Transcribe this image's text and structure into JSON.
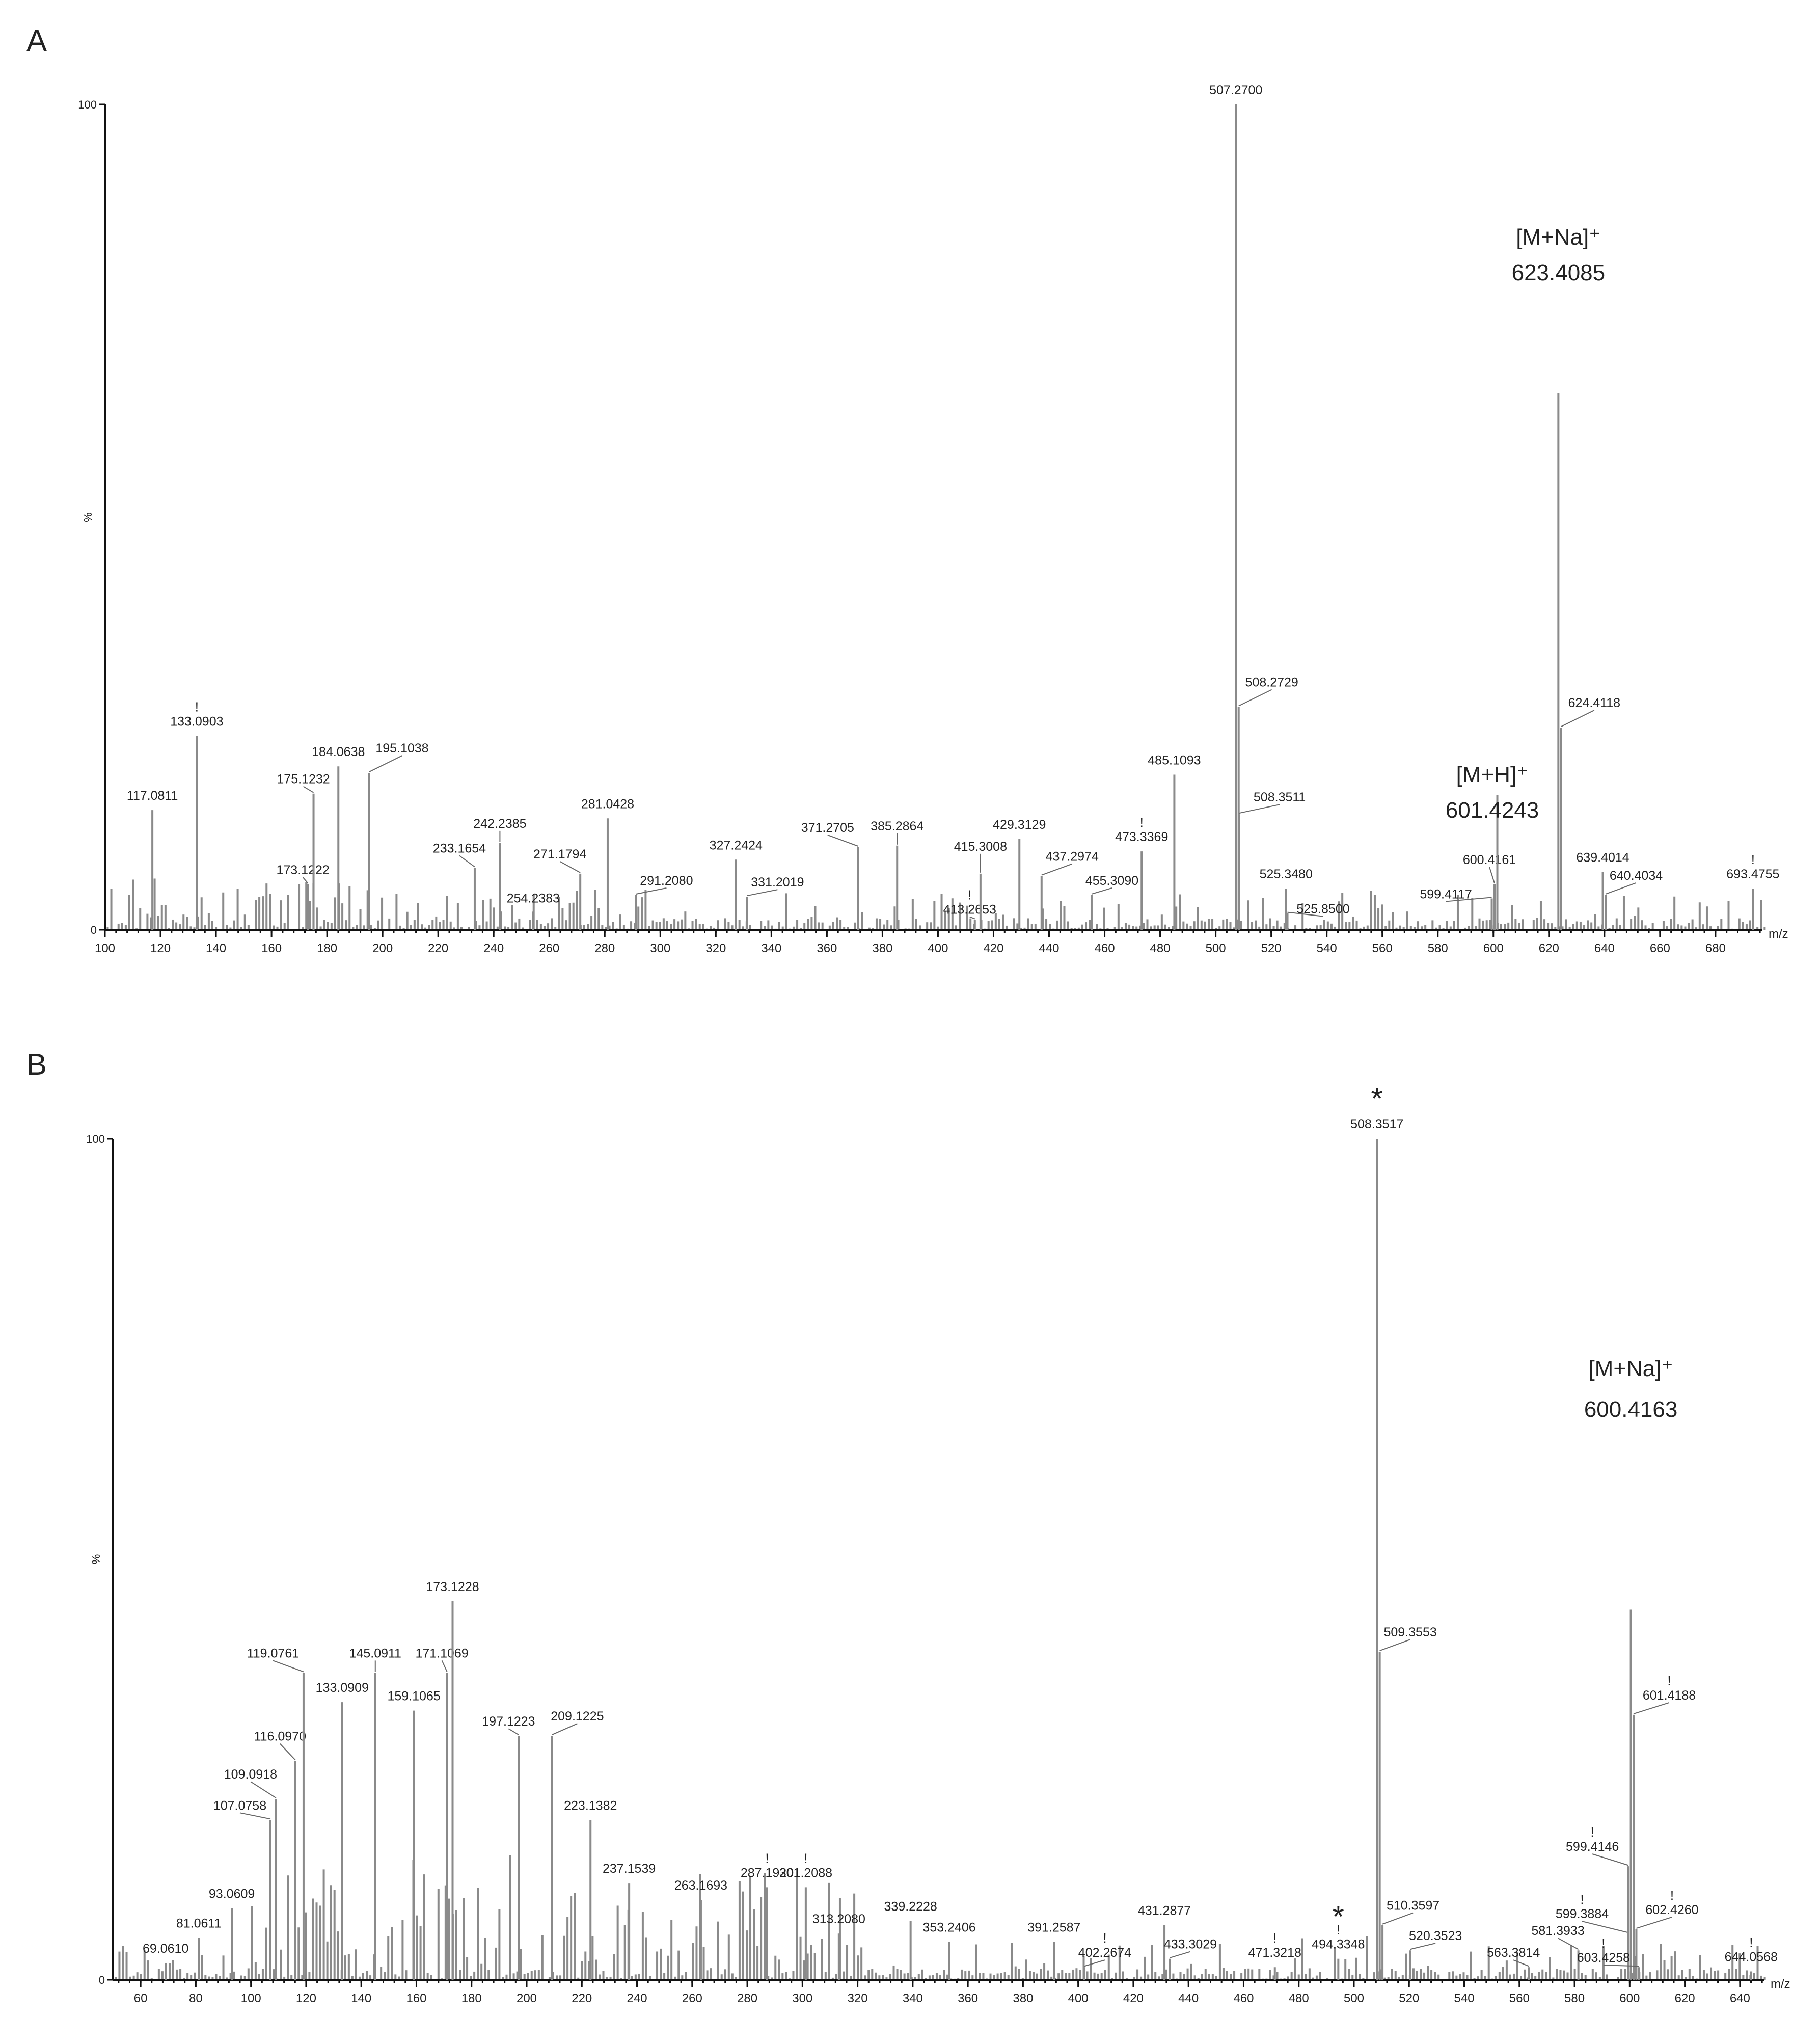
{
  "chart_data": [
    {
      "panel": "A",
      "type": "bar",
      "xlabel": "m/z",
      "ylabel": "%",
      "xlim": [
        100,
        698
      ],
      "ylim": [
        0,
        100
      ],
      "x_ticks": [
        100,
        120,
        140,
        160,
        180,
        200,
        220,
        240,
        260,
        280,
        300,
        320,
        340,
        360,
        380,
        400,
        420,
        440,
        460,
        480,
        500,
        520,
        540,
        560,
        580,
        600,
        620,
        640,
        660,
        680
      ],
      "y_ticks": [
        0,
        100
      ],
      "peaks": [
        {
          "mz": 117.0811,
          "intensity": 14.5,
          "label": "117.0811"
        },
        {
          "mz": 133.0903,
          "intensity": 23.5,
          "label": "133.0903",
          "flag": "!"
        },
        {
          "mz": 173.1222,
          "intensity": 5.5,
          "label": "173.1222"
        },
        {
          "mz": 175.1232,
          "intensity": 16.5,
          "label": "175.1232"
        },
        {
          "mz": 184.0638,
          "intensity": 19.8,
          "label": "184.0638"
        },
        {
          "mz": 195.1038,
          "intensity": 19.0,
          "label": "195.1038"
        },
        {
          "mz": 233.1654,
          "intensity": 7.5,
          "label": "233.1654"
        },
        {
          "mz": 242.2385,
          "intensity": 10.5,
          "label": "242.2385"
        },
        {
          "mz": 254.2383,
          "intensity": 2.2,
          "label": "254.2383"
        },
        {
          "mz": 271.1794,
          "intensity": 6.8,
          "label": "271.1794"
        },
        {
          "mz": 281.0428,
          "intensity": 13.5,
          "label": "281.0428"
        },
        {
          "mz": 291.208,
          "intensity": 4.2,
          "label": "291.2080"
        },
        {
          "mz": 327.2424,
          "intensity": 8.5,
          "label": "327.2424"
        },
        {
          "mz": 331.2019,
          "intensity": 4.0,
          "label": "331.2019"
        },
        {
          "mz": 371.2705,
          "intensity": 10.0,
          "label": "371.2705"
        },
        {
          "mz": 385.2864,
          "intensity": 10.2,
          "label": "385.2864"
        },
        {
          "mz": 413.2653,
          "intensity": 1.2,
          "label": "413.2653",
          "flag": "!"
        },
        {
          "mz": 415.3008,
          "intensity": 6.8,
          "label": "415.3008"
        },
        {
          "mz": 429.3129,
          "intensity": 11.0,
          "label": "429.3129"
        },
        {
          "mz": 437.2974,
          "intensity": 6.5,
          "label": "437.2974"
        },
        {
          "mz": 455.309,
          "intensity": 4.2,
          "label": "455.3090"
        },
        {
          "mz": 473.3369,
          "intensity": 9.5,
          "label": "473.3369",
          "flag": "!"
        },
        {
          "mz": 485.1093,
          "intensity": 18.8,
          "label": "485.1093"
        },
        {
          "mz": 507.27,
          "intensity": 100,
          "label": "507.2700"
        },
        {
          "mz": 508.2729,
          "intensity": 27.0,
          "label": "508.2729"
        },
        {
          "mz": 508.3511,
          "intensity": 14.0,
          "label": "508.3511"
        },
        {
          "mz": 525.348,
          "intensity": 5.0,
          "label": "525.3480"
        },
        {
          "mz": 525.85,
          "intensity": 2.0,
          "label": "525.8500"
        },
        {
          "mz": 599.4117,
          "intensity": 3.8,
          "label": "599.4117"
        },
        {
          "mz": 600.4161,
          "intensity": 5.5,
          "label": "600.4161"
        },
        {
          "mz": 601.4243,
          "intensity": 16.3,
          "label": "601.4243"
        },
        {
          "mz": 623.4085,
          "intensity": 65.0,
          "label": "623.4085"
        },
        {
          "mz": 624.4118,
          "intensity": 24.5,
          "label": "624.4118"
        },
        {
          "mz": 639.4014,
          "intensity": 7.0,
          "label": "639.4014"
        },
        {
          "mz": 640.4034,
          "intensity": 4.2,
          "label": "640.4034"
        },
        {
          "mz": 693.4755,
          "intensity": 5.0,
          "label": "693.4755",
          "flag": "!"
        }
      ],
      "annotations": [
        {
          "text": "[M+H]⁺",
          "mz": 601.4243,
          "value": "601.4243"
        },
        {
          "text": "[M+Na]⁺",
          "mz": 623.4085,
          "value": "623.4085"
        }
      ]
    },
    {
      "panel": "B",
      "type": "bar",
      "xlabel": "m/z",
      "ylabel": "%",
      "xlim": [
        50,
        650
      ],
      "ylim": [
        0,
        100
      ],
      "x_ticks": [
        60,
        80,
        100,
        120,
        140,
        160,
        180,
        200,
        220,
        240,
        260,
        280,
        300,
        320,
        340,
        360,
        380,
        400,
        420,
        440,
        460,
        480,
        500,
        520,
        540,
        560,
        580,
        600,
        620,
        640
      ],
      "y_ticks": [
        0,
        100
      ],
      "peaks": [
        {
          "mz": 69.061,
          "intensity": 2.0,
          "label": "69.0610"
        },
        {
          "mz": 81.0611,
          "intensity": 5.0,
          "label": "81.0611"
        },
        {
          "mz": 93.0609,
          "intensity": 8.5,
          "label": "93.0609"
        },
        {
          "mz": 107.0758,
          "intensity": 19.0,
          "label": "107.0758"
        },
        {
          "mz": 109.0918,
          "intensity": 21.5,
          "label": "109.0918"
        },
        {
          "mz": 116.097,
          "intensity": 26.0,
          "label": "116.0970"
        },
        {
          "mz": 119.0761,
          "intensity": 36.5,
          "label": "119.0761"
        },
        {
          "mz": 133.0909,
          "intensity": 33.0,
          "label": "133.0909"
        },
        {
          "mz": 145.0911,
          "intensity": 36.5,
          "label": "145.0911"
        },
        {
          "mz": 159.1065,
          "intensity": 32.0,
          "label": "159.1065"
        },
        {
          "mz": 171.1069,
          "intensity": 36.5,
          "label": "171.1069"
        },
        {
          "mz": 173.1228,
          "intensity": 45.0,
          "label": "173.1228"
        },
        {
          "mz": 197.1223,
          "intensity": 29.0,
          "label": "197.1223"
        },
        {
          "mz": 209.1225,
          "intensity": 29.0,
          "label": "209.1225"
        },
        {
          "mz": 223.1382,
          "intensity": 19.0,
          "label": "223.1382"
        },
        {
          "mz": 237.1539,
          "intensity": 11.5,
          "label": "237.1539"
        },
        {
          "mz": 263.1693,
          "intensity": 9.5,
          "label": "263.1693"
        },
        {
          "mz": 287.192,
          "intensity": 11.0,
          "label": "287.1920",
          "flag": "!"
        },
        {
          "mz": 301.2088,
          "intensity": 11.0,
          "label": "301.2088",
          "flag": "!"
        },
        {
          "mz": 313.208,
          "intensity": 5.5,
          "label": "313.2080"
        },
        {
          "mz": 339.2228,
          "intensity": 7.0,
          "label": "339.2228"
        },
        {
          "mz": 353.2406,
          "intensity": 4.5,
          "label": "353.2406"
        },
        {
          "mz": 391.2587,
          "intensity": 4.5,
          "label": "391.2587"
        },
        {
          "mz": 402.2674,
          "intensity": 1.5,
          "label": "402.2674",
          "flag": "!"
        },
        {
          "mz": 431.2877,
          "intensity": 6.5,
          "label": "431.2877"
        },
        {
          "mz": 433.3029,
          "intensity": 2.5,
          "label": "433.3029"
        },
        {
          "mz": 471.3218,
          "intensity": 1.5,
          "label": "471.3218",
          "flag": "!"
        },
        {
          "mz": 494.3348,
          "intensity": 2.5,
          "label": "494.3348",
          "flag": "!",
          "marker": "*"
        },
        {
          "mz": 508.3517,
          "intensity": 100,
          "label": "508.3517",
          "marker": "*"
        },
        {
          "mz": 509.3553,
          "intensity": 39.0,
          "label": "509.3553"
        },
        {
          "mz": 510.3597,
          "intensity": 6.5,
          "label": "510.3597"
        },
        {
          "mz": 520.3523,
          "intensity": 3.5,
          "label": "520.3523"
        },
        {
          "mz": 563.3814,
          "intensity": 1.5,
          "label": "563.3814"
        },
        {
          "mz": 581.3933,
          "intensity": 3.5,
          "label": "581.3933"
        },
        {
          "mz": 599.3884,
          "intensity": 5.5,
          "label": "599.3884",
          "flag": "!"
        },
        {
          "mz": 599.4146,
          "intensity": 13.5,
          "label": "599.4146",
          "flag": "!"
        },
        {
          "mz": 600.4163,
          "intensity": 44.0,
          "label": "600.4163"
        },
        {
          "mz": 601.4188,
          "intensity": 31.5,
          "label": "601.4188",
          "flag": "!"
        },
        {
          "mz": 602.426,
          "intensity": 6.0,
          "label": "602.4260",
          "flag": "!"
        },
        {
          "mz": 603.4258,
          "intensity": 1.5,
          "label": "603.4258",
          "flag": "!"
        },
        {
          "mz": 644.0568,
          "intensity": 1.0,
          "label": "644.0568",
          "flag": "!"
        }
      ],
      "annotations": [
        {
          "text": "[M+Na]⁺",
          "mz": 600.4163,
          "value": "600.4163"
        }
      ]
    }
  ]
}
